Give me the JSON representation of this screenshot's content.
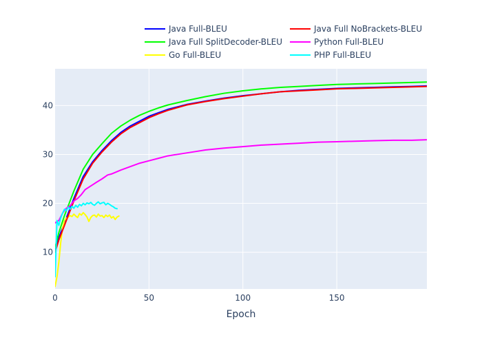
{
  "chart_data": {
    "type": "line",
    "title": "",
    "xlabel": "Epoch",
    "ylabel": "",
    "xlim": [
      0,
      198
    ],
    "ylim": [
      2.5,
      47.5
    ],
    "x_ticks": [
      0,
      50,
      100,
      150
    ],
    "y_ticks": [
      10,
      20,
      30,
      40
    ],
    "grid": true,
    "legend_position": "top",
    "colors": {
      "plot_background": "#E5ECF6",
      "grid": "#ffffff",
      "text": "#2a3f5f"
    },
    "series": [
      {
        "name": "Java Full-BLEU",
        "color": "#0000ff",
        "points": [
          [
            0,
            10.5
          ],
          [
            2,
            13
          ],
          [
            5,
            16
          ],
          [
            10,
            21
          ],
          [
            15,
            25.5
          ],
          [
            20,
            28.5
          ],
          [
            25,
            30.8
          ],
          [
            30,
            32.8
          ],
          [
            35,
            34.5
          ],
          [
            40,
            35.8
          ],
          [
            45,
            36.8
          ],
          [
            50,
            37.8
          ],
          [
            55,
            38.5
          ],
          [
            60,
            39.2
          ],
          [
            70,
            40.2
          ],
          [
            80,
            40.9
          ],
          [
            90,
            41.5
          ],
          [
            100,
            42
          ],
          [
            110,
            42.4
          ],
          [
            120,
            42.8
          ],
          [
            130,
            43.1
          ],
          [
            140,
            43.3
          ],
          [
            150,
            43.5
          ],
          [
            160,
            43.6
          ],
          [
            170,
            43.7
          ],
          [
            180,
            43.8
          ],
          [
            190,
            43.9
          ],
          [
            198,
            44
          ]
        ]
      },
      {
        "name": "Java Full SplitDecoder-BLEU",
        "color": "#00ff00",
        "points": [
          [
            0,
            11
          ],
          [
            2,
            14
          ],
          [
            5,
            17.5
          ],
          [
            10,
            22.5
          ],
          [
            15,
            27
          ],
          [
            20,
            30
          ],
          [
            25,
            32.2
          ],
          [
            30,
            34.3
          ],
          [
            35,
            35.8
          ],
          [
            40,
            37
          ],
          [
            45,
            38
          ],
          [
            50,
            38.8
          ],
          [
            55,
            39.5
          ],
          [
            60,
            40.1
          ],
          [
            70,
            41
          ],
          [
            80,
            41.8
          ],
          [
            90,
            42.5
          ],
          [
            100,
            43
          ],
          [
            110,
            43.4
          ],
          [
            120,
            43.7
          ],
          [
            130,
            43.9
          ],
          [
            140,
            44.1
          ],
          [
            150,
            44.3
          ],
          [
            160,
            44.4
          ],
          [
            170,
            44.5
          ],
          [
            180,
            44.6
          ],
          [
            190,
            44.7
          ],
          [
            198,
            44.8
          ]
        ]
      },
      {
        "name": "Go Full-BLEU",
        "color": "#ffff00",
        "points": [
          [
            0,
            3
          ],
          [
            1,
            5
          ],
          [
            2,
            8
          ],
          [
            3,
            12
          ],
          [
            4,
            15
          ],
          [
            5,
            16.5
          ],
          [
            6,
            17
          ],
          [
            7,
            17.2
          ],
          [
            8,
            17.5
          ],
          [
            9,
            17.3
          ],
          [
            10,
            17.8
          ],
          [
            11,
            17.4
          ],
          [
            12,
            17.1
          ],
          [
            13,
            17.9
          ],
          [
            14,
            17.6
          ],
          [
            15,
            18.1
          ],
          [
            16,
            17.7
          ],
          [
            17,
            17.2
          ],
          [
            18,
            16.3
          ],
          [
            19,
            17.1
          ],
          [
            20,
            17.5
          ],
          [
            21,
            17.6
          ],
          [
            22,
            17.2
          ],
          [
            23,
            17.8
          ],
          [
            24,
            17.4
          ],
          [
            25,
            17.5
          ],
          [
            26,
            17.1
          ],
          [
            27,
            17.6
          ],
          [
            28,
            17.3
          ],
          [
            29,
            17.6
          ],
          [
            30,
            17
          ],
          [
            31,
            17.3
          ],
          [
            32,
            16.7
          ],
          [
            33,
            17.2
          ],
          [
            34,
            17.4
          ]
        ]
      },
      {
        "name": "Java Full NoBrackets-BLEU",
        "color": "#ff0000",
        "points": [
          [
            0,
            10
          ],
          [
            2,
            12.5
          ],
          [
            5,
            15.5
          ],
          [
            10,
            20.5
          ],
          [
            15,
            25
          ],
          [
            20,
            28.2
          ],
          [
            25,
            30.5
          ],
          [
            30,
            32.5
          ],
          [
            35,
            34.2
          ],
          [
            40,
            35.5
          ],
          [
            45,
            36.5
          ],
          [
            50,
            37.5
          ],
          [
            55,
            38.3
          ],
          [
            60,
            39
          ],
          [
            70,
            40.1
          ],
          [
            80,
            40.8
          ],
          [
            90,
            41.4
          ],
          [
            100,
            41.9
          ],
          [
            110,
            42.4
          ],
          [
            120,
            42.8
          ],
          [
            130,
            43
          ],
          [
            140,
            43.2
          ],
          [
            150,
            43.4
          ],
          [
            160,
            43.5
          ],
          [
            170,
            43.6
          ],
          [
            180,
            43.7
          ],
          [
            190,
            43.8
          ],
          [
            198,
            43.9
          ]
        ]
      },
      {
        "name": "Python Full-BLEU",
        "color": "#ff00ff",
        "points": [
          [
            0,
            16
          ],
          [
            2,
            16.5
          ],
          [
            4,
            18
          ],
          [
            6,
            19
          ],
          [
            8,
            19.5
          ],
          [
            10,
            20.5
          ],
          [
            12,
            21
          ],
          [
            14,
            21.8
          ],
          [
            16,
            22.8
          ],
          [
            18,
            23.3
          ],
          [
            20,
            23.8
          ],
          [
            22,
            24.3
          ],
          [
            25,
            25
          ],
          [
            28,
            25.8
          ],
          [
            30,
            26
          ],
          [
            35,
            26.8
          ],
          [
            40,
            27.5
          ],
          [
            45,
            28.2
          ],
          [
            50,
            28.7
          ],
          [
            55,
            29.2
          ],
          [
            60,
            29.7
          ],
          [
            65,
            30
          ],
          [
            70,
            30.3
          ],
          [
            75,
            30.6
          ],
          [
            80,
            30.9
          ],
          [
            85,
            31.1
          ],
          [
            90,
            31.3
          ],
          [
            100,
            31.6
          ],
          [
            110,
            31.9
          ],
          [
            120,
            32.1
          ],
          [
            130,
            32.3
          ],
          [
            140,
            32.5
          ],
          [
            150,
            32.6
          ],
          [
            160,
            32.7
          ],
          [
            170,
            32.8
          ],
          [
            180,
            32.9
          ],
          [
            190,
            32.9
          ],
          [
            198,
            33
          ]
        ]
      },
      {
        "name": "PHP Full-BLEU",
        "color": "#00ffff",
        "points": [
          [
            0,
            5
          ],
          [
            1,
            16.5
          ],
          [
            2,
            15.5
          ],
          [
            3,
            17
          ],
          [
            4,
            18
          ],
          [
            5,
            18.8
          ],
          [
            6,
            18.5
          ],
          [
            7,
            19.2
          ],
          [
            8,
            18.8
          ],
          [
            9,
            19.4
          ],
          [
            10,
            19
          ],
          [
            11,
            19.6
          ],
          [
            12,
            19.2
          ],
          [
            13,
            19.8
          ],
          [
            14,
            19.5
          ],
          [
            15,
            20
          ],
          [
            16,
            19.7
          ],
          [
            17,
            20.1
          ],
          [
            18,
            19.9
          ],
          [
            19,
            20.2
          ],
          [
            20,
            19.8
          ],
          [
            21,
            19.6
          ],
          [
            22,
            20
          ],
          [
            23,
            20.3
          ],
          [
            24,
            19.9
          ],
          [
            25,
            20.1
          ],
          [
            26,
            20.2
          ],
          [
            27,
            19.7
          ],
          [
            28,
            20
          ],
          [
            29,
            19.8
          ],
          [
            30,
            19.5
          ],
          [
            31,
            19.3
          ],
          [
            32,
            19
          ],
          [
            33,
            18.9
          ]
        ]
      }
    ]
  }
}
